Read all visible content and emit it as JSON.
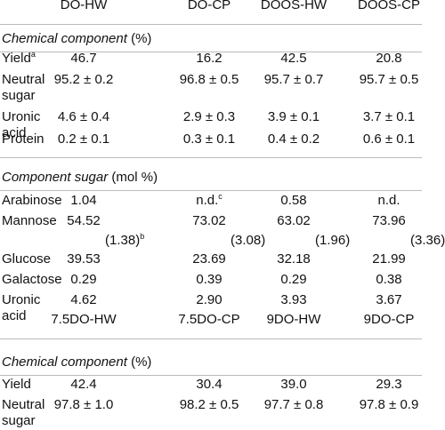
{
  "table": {
    "header": [
      "DO-HW",
      "DO-CP",
      "DOOS-HW",
      "DOOS-CP"
    ],
    "sections": [
      {
        "title": "Chemical component",
        "unit": "(%)",
        "rows": [
          {
            "label": "Yield",
            "note": "a",
            "values": [
              "46.7",
              "16.2",
              "42.5",
              "20.8"
            ]
          },
          {
            "label": "Neutral sugar",
            "values": [
              "95.2 ± 0.2",
              "96.8 ± 0.5",
              "95.7 ± 0.7",
              "95.7 ± 0.5"
            ]
          },
          {
            "label": "Uronic acid",
            "values": [
              "4.6 ± 0.4",
              "2.9 ± 0.3",
              "3.9 ± 0.1",
              "3.7 ± 0.1"
            ]
          },
          {
            "label": "Protein",
            "values": [
              "0.2 ± 0.1",
              "0.3 ± 0.1",
              "0.4 ± 0.2",
              "0.6 ± 0.1"
            ]
          }
        ]
      },
      {
        "title": "Component sugar",
        "unit": "(mol %)",
        "rows": [
          {
            "label": "Arabinose",
            "values": [
              "1.04",
              {
                "text": "n.d.",
                "note": "c"
              },
              "0.58",
              "n.d."
            ]
          },
          {
            "label": "Mannose",
            "values": [
              "54.52",
              "73.02",
              "63.02",
              "73.96"
            ],
            "sub": [
              {
                "text": "(1.38)",
                "note": "b"
              },
              "(3.08)",
              "(1.96)",
              "(3.36)"
            ]
          },
          {
            "label": "Glucose",
            "values": [
              "39.53",
              "23.69",
              "32.18",
              "21.99"
            ]
          },
          {
            "label": "Galactose",
            "values": [
              "0.29",
              "0.39",
              "0.29",
              "0.38"
            ]
          },
          {
            "label": "Uronic acid",
            "values": [
              "4.62",
              "2.90",
              "3.93",
              "3.67"
            ]
          }
        ]
      }
    ]
  },
  "table2": {
    "header": [
      "7.5DO-HW",
      "7.5DO-CP",
      "9DO-HW",
      "9DO-CP"
    ],
    "sections": [
      {
        "title": "Chemical component",
        "unit": "(%)",
        "rows": [
          {
            "label": "Yield",
            "values": [
              "42.4",
              "30.4",
              "39.0",
              "29.3"
            ]
          },
          {
            "label": "Neutral sugar",
            "values": [
              "97.8 ± 1.0",
              "98.2 ± 0.5",
              "97.7 ± 0.8",
              "97.8 ± 0.9"
            ]
          }
        ]
      }
    ]
  }
}
